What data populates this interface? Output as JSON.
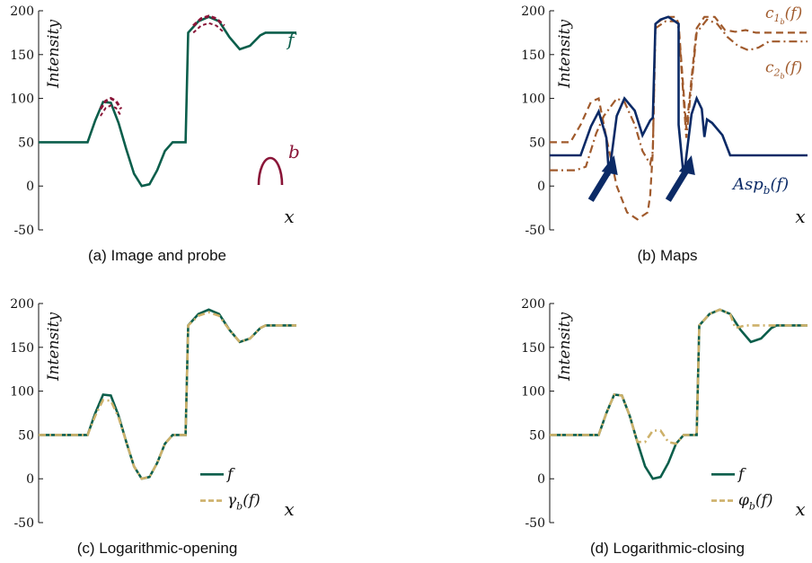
{
  "colors": {
    "f": "#0b5e4b",
    "probe": "#8a1538",
    "asp": "#0b2a66",
    "c": "#a05a2c",
    "gold": "#cdb16a",
    "axis": "#111111"
  },
  "chart_data": [
    {
      "id": "a",
      "type": "line",
      "caption": "(a) Image and probe",
      "ylabel": "Intensity",
      "xlabel": "x",
      "ylim": [
        -50,
        200
      ],
      "yticks": [
        -50,
        0,
        50,
        100,
        150,
        200
      ],
      "annotations": {
        "f": "f",
        "b": "b"
      },
      "series": [
        {
          "key": "f",
          "x": [
            0,
            0.05,
            0.1,
            0.15,
            0.19,
            0.22,
            0.25,
            0.28,
            0.31,
            0.34,
            0.37,
            0.4,
            0.43,
            0.46,
            0.49,
            0.52,
            0.55,
            0.57,
            0.58,
            0.62,
            0.66,
            0.7,
            0.74,
            0.78,
            0.82,
            0.86,
            0.88,
            1.0
          ],
          "y": [
            50,
            50,
            50,
            50,
            50,
            75,
            96,
            95,
            72,
            42,
            14,
            0,
            2,
            18,
            40,
            50,
            50,
            50,
            175,
            188,
            193,
            188,
            170,
            156,
            160,
            172,
            175,
            175
          ]
        },
        {
          "key": "probe_top_1",
          "x": [
            0.24,
            0.26,
            0.28,
            0.3,
            0.32
          ],
          "y": [
            88,
            97,
            100,
            97,
            88
          ]
        },
        {
          "key": "probe_top_2",
          "x": [
            0.6,
            0.63,
            0.66,
            0.69,
            0.72
          ],
          "y": [
            183,
            191,
            194,
            191,
            183
          ]
        }
      ]
    },
    {
      "id": "b",
      "type": "line",
      "caption": "(b) Maps",
      "ylabel": "Intensity",
      "xlabel": "x",
      "ylim": [
        -50,
        200
      ],
      "yticks": [
        -50,
        0,
        50,
        100,
        150,
        200
      ],
      "annotations": {
        "c1": "c",
        "c1_sub": "1",
        "c1_subsub": "b",
        "c2": "c",
        "c2_sub": "2",
        "c2_subsub": "b",
        "asp": "Asp",
        "asp_sub": "b",
        "arg": "(f)"
      },
      "series": [
        {
          "key": "asp",
          "x": [
            0,
            0.08,
            0.12,
            0.16,
            0.19,
            0.22,
            0.23,
            0.26,
            0.29,
            0.33,
            0.36,
            0.39,
            0.4,
            0.41,
            0.43,
            0.46,
            0.5,
            0.5,
            0.52,
            0.55,
            0.57,
            0.59,
            0.6,
            0.61,
            0.63,
            0.67,
            0.7,
            0.73,
            0.76,
            0.79,
            0.82,
            0.86,
            0.9,
            1.0
          ],
          "y": [
            35,
            35,
            35,
            68,
            85,
            55,
            12,
            80,
            100,
            86,
            58,
            75,
            78,
            185,
            190,
            193,
            185,
            70,
            10,
            82,
            100,
            88,
            56,
            76,
            72,
            58,
            35,
            35,
            35,
            35,
            35,
            35,
            35,
            35
          ]
        },
        {
          "key": "c1",
          "x": [
            0,
            0.08,
            0.12,
            0.16,
            0.19,
            0.22,
            0.26,
            0.3,
            0.34,
            0.38,
            0.39,
            0.4,
            0.41,
            0.45,
            0.49,
            0.5,
            0.53,
            0.57,
            0.6,
            0.64,
            0.68,
            0.72,
            0.76,
            0.8,
            1.0
          ],
          "y": [
            50,
            50,
            70,
            96,
            100,
            55,
            0,
            -30,
            -38,
            -30,
            -10,
            40,
            185,
            193,
            193,
            185,
            65,
            180,
            193,
            193,
            178,
            176,
            178,
            175,
            175
          ]
        },
        {
          "key": "c2",
          "x": [
            0,
            0.1,
            0.14,
            0.18,
            0.21,
            0.24,
            0.26,
            0.29,
            0.33,
            0.36,
            0.39,
            0.4,
            0.41,
            0.45,
            0.49,
            0.5,
            0.53,
            0.57,
            0.61,
            0.65,
            0.69,
            0.73,
            0.77,
            0.81,
            0.85,
            1.0
          ],
          "y": [
            18,
            18,
            22,
            60,
            80,
            92,
            100,
            96,
            70,
            40,
            25,
            40,
            180,
            188,
            188,
            180,
            55,
            175,
            190,
            185,
            170,
            160,
            155,
            158,
            165,
            165
          ]
        }
      ],
      "arrows": [
        {
          "x": 0.23,
          "y": -20
        },
        {
          "x": 0.53,
          "y": -20
        }
      ]
    },
    {
      "id": "c",
      "type": "line",
      "caption": "(c) Logarithmic-opening",
      "ylabel": "Intensity",
      "xlabel": "x",
      "ylim": [
        -50,
        200
      ],
      "yticks": [
        -50,
        0,
        50,
        100,
        150,
        200
      ],
      "legend": {
        "f": "f",
        "g": "γ",
        "g_sub": "b",
        "g_arg": "(f)"
      },
      "series": [
        {
          "key": "f",
          "x": [
            0,
            0.05,
            0.1,
            0.15,
            0.19,
            0.22,
            0.25,
            0.28,
            0.31,
            0.34,
            0.37,
            0.4,
            0.43,
            0.46,
            0.49,
            0.52,
            0.55,
            0.57,
            0.58,
            0.62,
            0.66,
            0.7,
            0.74,
            0.78,
            0.82,
            0.86,
            0.88,
            1.0
          ],
          "y": [
            50,
            50,
            50,
            50,
            50,
            75,
            96,
            95,
            72,
            42,
            14,
            0,
            2,
            18,
            40,
            50,
            50,
            50,
            175,
            188,
            193,
            188,
            170,
            156,
            160,
            172,
            175,
            175
          ]
        },
        {
          "key": "g",
          "x": [
            0,
            0.05,
            0.1,
            0.15,
            0.19,
            0.22,
            0.25,
            0.28,
            0.31,
            0.34,
            0.37,
            0.4,
            0.43,
            0.46,
            0.49,
            0.52,
            0.55,
            0.57,
            0.58,
            0.62,
            0.66,
            0.7,
            0.74,
            0.78,
            0.82,
            0.86,
            0.88,
            1.0
          ],
          "y": [
            50,
            50,
            50,
            50,
            50,
            72,
            90,
            89,
            70,
            42,
            14,
            0,
            2,
            18,
            40,
            50,
            50,
            50,
            175,
            186,
            190,
            186,
            170,
            156,
            160,
            172,
            175,
            175
          ]
        }
      ]
    },
    {
      "id": "d",
      "type": "line",
      "caption": "(d) Logarithmic-closing",
      "ylabel": "Intensity",
      "xlabel": "x",
      "ylim": [
        -50,
        200
      ],
      "yticks": [
        -50,
        0,
        50,
        100,
        150,
        200
      ],
      "legend": {
        "f": "f",
        "g": "φ",
        "g_sub": "b",
        "g_arg": "(f)"
      },
      "series": [
        {
          "key": "f",
          "x": [
            0,
            0.05,
            0.1,
            0.15,
            0.19,
            0.22,
            0.25,
            0.28,
            0.31,
            0.34,
            0.37,
            0.4,
            0.43,
            0.46,
            0.49,
            0.52,
            0.55,
            0.57,
            0.58,
            0.62,
            0.66,
            0.7,
            0.74,
            0.78,
            0.82,
            0.86,
            0.88,
            1.0
          ],
          "y": [
            50,
            50,
            50,
            50,
            50,
            75,
            96,
            95,
            72,
            42,
            14,
            0,
            2,
            18,
            40,
            50,
            50,
            50,
            175,
            188,
            193,
            188,
            170,
            156,
            160,
            172,
            175,
            175
          ]
        },
        {
          "key": "g",
          "x": [
            0,
            0.05,
            0.1,
            0.15,
            0.19,
            0.22,
            0.25,
            0.28,
            0.31,
            0.34,
            0.37,
            0.4,
            0.43,
            0.46,
            0.49,
            0.52,
            0.55,
            0.57,
            0.58,
            0.62,
            0.66,
            0.7,
            0.72,
            0.76,
            0.8,
            0.84,
            0.86,
            0.88,
            1.0
          ],
          "y": [
            50,
            50,
            50,
            50,
            50,
            75,
            96,
            95,
            72,
            42,
            42,
            55,
            55,
            42,
            40,
            50,
            50,
            50,
            175,
            188,
            193,
            188,
            172,
            175,
            175,
            175,
            175,
            175,
            175
          ]
        }
      ]
    }
  ]
}
